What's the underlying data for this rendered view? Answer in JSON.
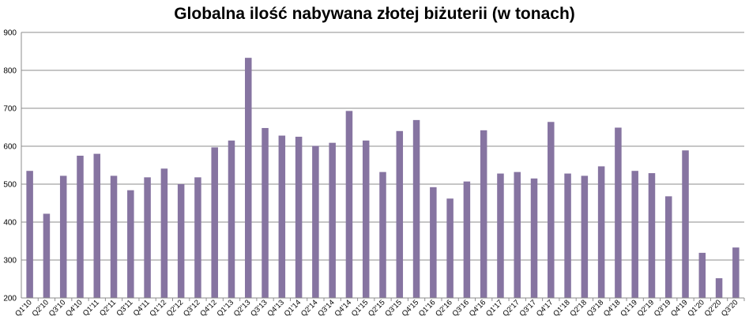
{
  "chart_data": {
    "type": "bar",
    "title": "Globalna ilość nabywana złotej biżuterii (w tonach)",
    "xlabel": "",
    "ylabel": "",
    "ylim": [
      200,
      900
    ],
    "yticks": [
      200,
      300,
      400,
      500,
      600,
      700,
      800,
      900
    ],
    "grid": true,
    "legend": "none",
    "bar_color": "#8674A1",
    "categories": [
      "Q1'10",
      "Q2'10",
      "Q3'10",
      "Q4'10",
      "Q1'11",
      "Q2'11",
      "Q3'11",
      "Q4'11",
      "Q1'12",
      "Q2'12",
      "Q3'12",
      "Q4'12",
      "Q1'13",
      "Q2'13",
      "Q3'13",
      "Q4'13",
      "Q1'14",
      "Q2'14",
      "Q3'14",
      "Q4'14",
      "Q1'15",
      "Q2'15",
      "Q3'15",
      "Q4'15",
      "Q1'16",
      "Q2'16",
      "Q3'16",
      "Q4'16",
      "Q1'17",
      "Q2'17",
      "Q3'17",
      "Q4'17",
      "Q1'18",
      "Q2'18",
      "Q3'18",
      "Q4'18",
      "Q1'19",
      "Q2'19",
      "Q3'19",
      "Q4'19",
      "Q1'20",
      "Q2'20",
      "Q3'20"
    ],
    "values": [
      535,
      422,
      522,
      575,
      580,
      522,
      484,
      518,
      541,
      500,
      518,
      597,
      615,
      833,
      648,
      628,
      625,
      601,
      609,
      693,
      615,
      532,
      640,
      669,
      492,
      462,
      507,
      642,
      528,
      532,
      515,
      664,
      528,
      522,
      547,
      649,
      535,
      529,
      468,
      589,
      319,
      252,
      333
    ]
  }
}
